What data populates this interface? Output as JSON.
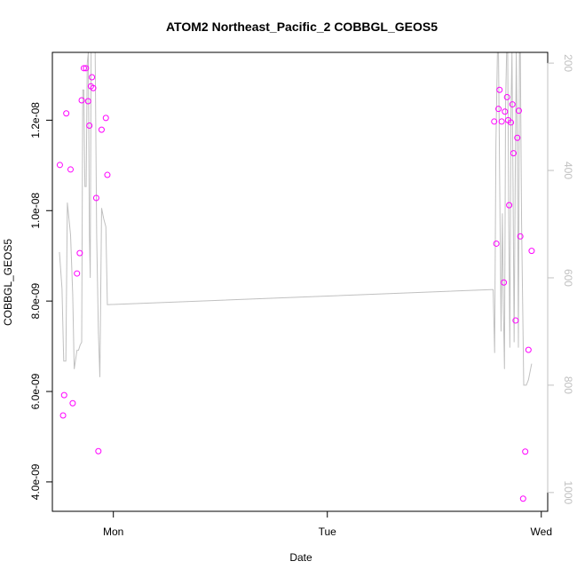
{
  "chart_data": {
    "type": "scatter",
    "title": "ATOM2 Northeast_Pacific_2 COBBGL_GEOS5",
    "xlabel": "Date",
    "ylabel": "COBBGL_GEOS5",
    "x_ticks": [
      {
        "value": 0,
        "label": "Mon"
      },
      {
        "value": 1,
        "label": "Tue"
      },
      {
        "value": 2,
        "label": "Wed"
      }
    ],
    "xlim": [
      -0.285,
      2.03
    ],
    "y_ticks": [
      {
        "value": 4e-09,
        "label": "4.0e-09"
      },
      {
        "value": 6e-09,
        "label": "6.0e-09"
      },
      {
        "value": 8e-09,
        "label": "8.0e-09"
      },
      {
        "value": 1e-08,
        "label": "1.0e-08"
      },
      {
        "value": 1.2e-08,
        "label": "1.2e-08"
      }
    ],
    "ylim": [
      3.35e-09,
      1.35e-08
    ],
    "y2_ticks": [
      {
        "value": 200,
        "label": "200"
      },
      {
        "value": 400,
        "label": "400"
      },
      {
        "value": 600,
        "label": "600"
      },
      {
        "value": 800,
        "label": "800"
      },
      {
        "value": 1000,
        "label": "1000"
      }
    ],
    "y2lim": [
      1035,
      180
    ],
    "y2_reversed": true,
    "grid": false,
    "colors": {
      "points": "#ff00ff",
      "line": "#c0c0c0"
    },
    "series": [
      {
        "type": "scatter",
        "points": [
          {
            "x": -0.25,
            "y": 1.101e-08
          },
          {
            "x": -0.235,
            "y": 5.47e-09
          },
          {
            "x": -0.23,
            "y": 5.92e-09
          },
          {
            "x": -0.22,
            "y": 1.215e-08
          },
          {
            "x": -0.2,
            "y": 1.091e-08
          },
          {
            "x": -0.19,
            "y": 5.74e-09
          },
          {
            "x": -0.17,
            "y": 8.61e-09
          },
          {
            "x": -0.157,
            "y": 9.06e-09
          },
          {
            "x": -0.148,
            "y": 1.244e-08
          },
          {
            "x": -0.138,
            "y": 1.315e-08
          },
          {
            "x": -0.128,
            "y": 1.315e-08
          },
          {
            "x": -0.118,
            "y": 1.242e-08
          },
          {
            "x": -0.112,
            "y": 1.188e-08
          },
          {
            "x": -0.105,
            "y": 1.275e-08
          },
          {
            "x": -0.1,
            "y": 1.295e-08
          },
          {
            "x": -0.094,
            "y": 1.271e-08
          },
          {
            "x": -0.08,
            "y": 1.028e-08
          },
          {
            "x": -0.07,
            "y": 4.68e-09
          },
          {
            "x": -0.055,
            "y": 1.179e-08
          },
          {
            "x": -0.035,
            "y": 1.205e-08
          },
          {
            "x": -0.028,
            "y": 1.079e-08
          },
          {
            "x": 1.78,
            "y": 1.197e-08
          },
          {
            "x": 1.79,
            "y": 9.27e-09
          },
          {
            "x": 1.8,
            "y": 1.225e-08
          },
          {
            "x": 1.805,
            "y": 1.267e-08
          },
          {
            "x": 1.815,
            "y": 1.197e-08
          },
          {
            "x": 1.825,
            "y": 8.41e-09
          },
          {
            "x": 1.83,
            "y": 1.219e-08
          },
          {
            "x": 1.84,
            "y": 1.251e-08
          },
          {
            "x": 1.845,
            "y": 1.2e-08
          },
          {
            "x": 1.85,
            "y": 1.012e-08
          },
          {
            "x": 1.858,
            "y": 1.195e-08
          },
          {
            "x": 1.865,
            "y": 1.235e-08
          },
          {
            "x": 1.87,
            "y": 1.127e-08
          },
          {
            "x": 1.88,
            "y": 7.57e-09
          },
          {
            "x": 1.888,
            "y": 1.161e-08
          },
          {
            "x": 1.895,
            "y": 1.221e-08
          },
          {
            "x": 1.902,
            "y": 9.43e-09
          },
          {
            "x": 1.915,
            "y": 3.63e-09
          },
          {
            "x": 1.925,
            "y": 4.67e-09
          },
          {
            "x": 1.94,
            "y": 6.92e-09
          },
          {
            "x": 1.955,
            "y": 9.11e-09
          }
        ]
      },
      {
        "type": "line",
        "axis": "y2",
        "points": [
          {
            "x": -0.252,
            "y": 552
          },
          {
            "x": -0.24,
            "y": 620
          },
          {
            "x": -0.232,
            "y": 755
          },
          {
            "x": -0.222,
            "y": 755
          },
          {
            "x": -0.215,
            "y": 460
          },
          {
            "x": -0.2,
            "y": 520
          },
          {
            "x": -0.19,
            "y": 630
          },
          {
            "x": -0.183,
            "y": 770
          },
          {
            "x": -0.17,
            "y": 735
          },
          {
            "x": -0.163,
            "y": 735
          },
          {
            "x": -0.155,
            "y": 725
          },
          {
            "x": -0.148,
            "y": 720
          },
          {
            "x": -0.143,
            "y": 250
          },
          {
            "x": -0.138,
            "y": 250
          },
          {
            "x": -0.133,
            "y": 430
          },
          {
            "x": -0.127,
            "y": 430
          },
          {
            "x": -0.122,
            "y": 200
          },
          {
            "x": -0.117,
            "y": 180
          },
          {
            "x": -0.112,
            "y": 520
          },
          {
            "x": -0.108,
            "y": 600
          },
          {
            "x": -0.104,
            "y": 180
          },
          {
            "x": -0.085,
            "y": 180
          },
          {
            "x": -0.078,
            "y": 520
          },
          {
            "x": -0.07,
            "y": 700
          },
          {
            "x": -0.063,
            "y": 785
          },
          {
            "x": -0.055,
            "y": 470
          },
          {
            "x": -0.045,
            "y": 490
          },
          {
            "x": -0.035,
            "y": 505
          },
          {
            "x": -0.028,
            "y": 650
          },
          {
            "x": 1.765,
            "y": 622
          },
          {
            "x": 1.775,
            "y": 622
          },
          {
            "x": 1.782,
            "y": 740
          },
          {
            "x": 1.788,
            "y": 350
          },
          {
            "x": 1.795,
            "y": 180
          },
          {
            "x": 1.8,
            "y": 180
          },
          {
            "x": 1.806,
            "y": 440
          },
          {
            "x": 1.812,
            "y": 700
          },
          {
            "x": 1.818,
            "y": 480
          },
          {
            "x": 1.823,
            "y": 660
          },
          {
            "x": 1.828,
            "y": 770
          },
          {
            "x": 1.833,
            "y": 280
          },
          {
            "x": 1.838,
            "y": 180
          },
          {
            "x": 1.843,
            "y": 180
          },
          {
            "x": 1.848,
            "y": 500
          },
          {
            "x": 1.853,
            "y": 730
          },
          {
            "x": 1.858,
            "y": 300
          },
          {
            "x": 1.863,
            "y": 180
          },
          {
            "x": 1.868,
            "y": 430
          },
          {
            "x": 1.873,
            "y": 720
          },
          {
            "x": 1.878,
            "y": 430
          },
          {
            "x": 1.883,
            "y": 180
          },
          {
            "x": 1.888,
            "y": 350
          },
          {
            "x": 1.893,
            "y": 730
          },
          {
            "x": 1.898,
            "y": 180
          },
          {
            "x": 1.902,
            "y": 180
          },
          {
            "x": 1.908,
            "y": 500
          },
          {
            "x": 1.913,
            "y": 650
          },
          {
            "x": 1.918,
            "y": 800
          },
          {
            "x": 1.93,
            "y": 800
          },
          {
            "x": 1.94,
            "y": 790
          },
          {
            "x": 1.955,
            "y": 760
          }
        ]
      }
    ]
  }
}
